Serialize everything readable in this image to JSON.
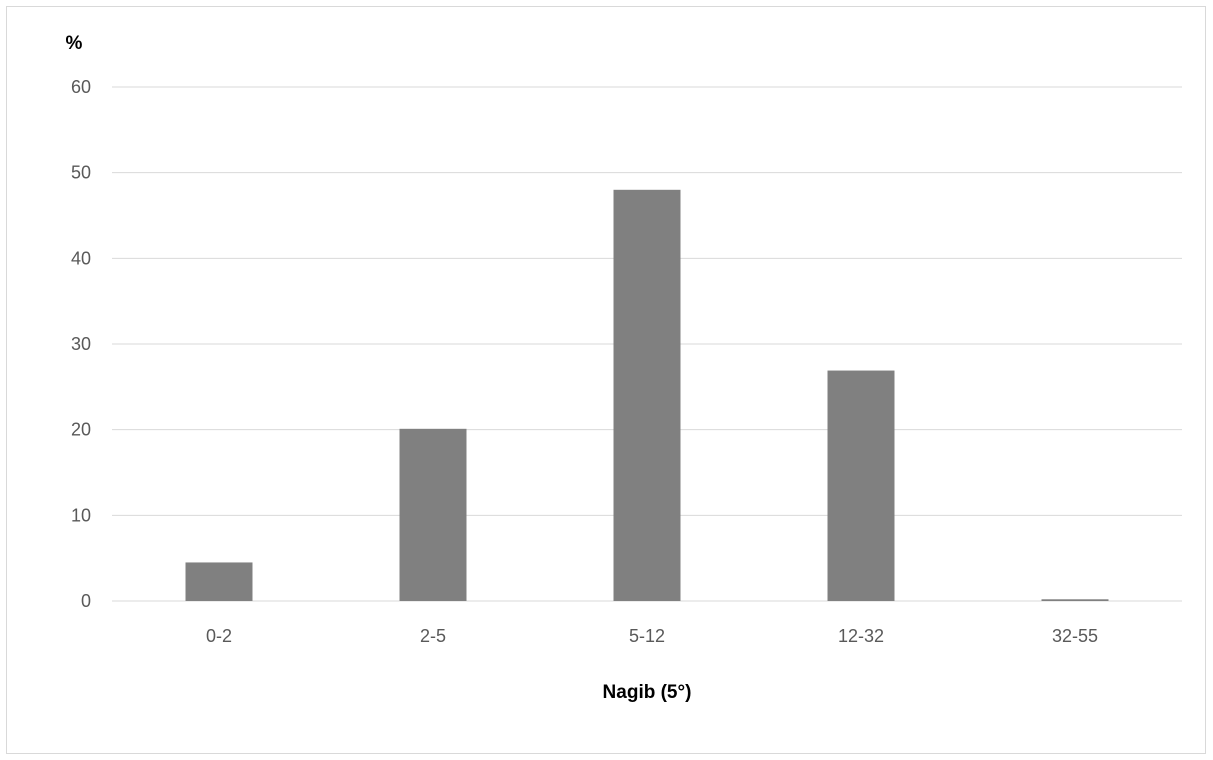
{
  "chart_data": {
    "type": "bar",
    "categories": [
      "0-2",
      "2-5",
      "5-12",
      "12-32",
      "32-55"
    ],
    "values": [
      4.5,
      20.1,
      48.0,
      26.9,
      0.2
    ],
    "xlabel": "Nagib (5°)",
    "ylabel": "%",
    "ylim": [
      0,
      60
    ],
    "yticks": [
      "0",
      "10",
      "20",
      "30",
      "40",
      "50",
      "60"
    ],
    "grid": true,
    "legend": "none",
    "colors": {
      "bar": "#808080",
      "grid": "#d9d9d9",
      "tick_text": "#595959"
    }
  }
}
